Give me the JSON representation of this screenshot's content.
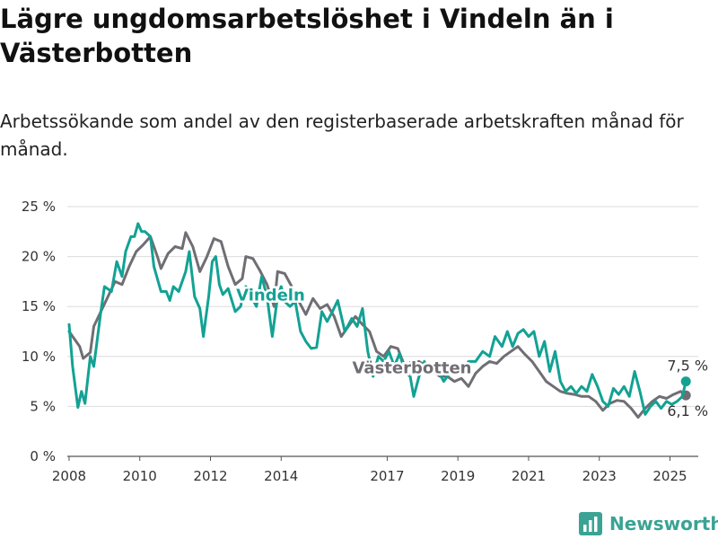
{
  "title": "Lägre ungdomsarbetslöshet i Vindeln än i Västerbotten",
  "subtitle": "Arbetssökande som andel av den registerbaserade arbetskraften månad för månad.",
  "brand": {
    "name": "Newsworthy",
    "icon": "bar-chart-logo-icon"
  },
  "colors": {
    "vindeln": "#12a294",
    "vasterbotten": "#706e74",
    "grid": "#dcdcdc"
  },
  "chart_data": {
    "type": "line",
    "title": "Lägre ungdomsarbetslöshet i Vindeln än i Västerbotten",
    "subtitle": "Arbetssökande som andel av den registerbaserade arbetskraften månad för månad.",
    "xlabel": "",
    "ylabel": "",
    "xlim": [
      2007.95,
      2025.8
    ],
    "ylim": [
      0,
      25
    ],
    "x_ticks": [
      2008,
      2010,
      2012,
      2014,
      2017,
      2019,
      2021,
      2023,
      2025
    ],
    "y_ticks": [
      {
        "value": 0,
        "label": "0 %"
      },
      {
        "value": 5,
        "label": "5 %"
      },
      {
        "value": 10,
        "label": "10 %"
      },
      {
        "value": 15,
        "label": "15 %"
      },
      {
        "value": 20,
        "label": "20 %"
      },
      {
        "value": 25,
        "label": "25 %"
      }
    ],
    "grid": true,
    "series": [
      {
        "name": "Västerbotten",
        "color": "#706e74",
        "points": [
          [
            2008.0,
            12.5
          ],
          [
            2008.3,
            11.0
          ],
          [
            2008.4,
            9.8
          ],
          [
            2008.6,
            10.4
          ],
          [
            2008.7,
            13.0
          ],
          [
            2008.9,
            14.5
          ],
          [
            2009.1,
            16.0
          ],
          [
            2009.3,
            17.5
          ],
          [
            2009.5,
            17.2
          ],
          [
            2009.7,
            19.0
          ],
          [
            2009.9,
            20.5
          ],
          [
            2010.1,
            21.2
          ],
          [
            2010.3,
            22.0
          ],
          [
            2010.5,
            20.0
          ],
          [
            2010.6,
            18.8
          ],
          [
            2010.8,
            20.3
          ],
          [
            2011.0,
            21.0
          ],
          [
            2011.2,
            20.8
          ],
          [
            2011.3,
            22.4
          ],
          [
            2011.5,
            21.0
          ],
          [
            2011.7,
            18.5
          ],
          [
            2011.9,
            20.0
          ],
          [
            2012.1,
            21.8
          ],
          [
            2012.3,
            21.5
          ],
          [
            2012.5,
            19.0
          ],
          [
            2012.7,
            17.2
          ],
          [
            2012.9,
            17.8
          ],
          [
            2013.0,
            20.0
          ],
          [
            2013.2,
            19.8
          ],
          [
            2013.4,
            18.6
          ],
          [
            2013.6,
            17.2
          ],
          [
            2013.8,
            15.0
          ],
          [
            2013.9,
            18.5
          ],
          [
            2014.1,
            18.3
          ],
          [
            2014.3,
            17.0
          ],
          [
            2014.5,
            15.5
          ],
          [
            2014.7,
            14.2
          ],
          [
            2014.9,
            15.8
          ],
          [
            2015.1,
            14.8
          ],
          [
            2015.3,
            15.2
          ],
          [
            2015.5,
            14.0
          ],
          [
            2015.7,
            12.0
          ],
          [
            2015.9,
            13.0
          ],
          [
            2016.1,
            14.0
          ],
          [
            2016.3,
            13.2
          ],
          [
            2016.5,
            12.5
          ],
          [
            2016.7,
            10.5
          ],
          [
            2016.9,
            10.0
          ],
          [
            2017.1,
            11.0
          ],
          [
            2017.3,
            10.8
          ],
          [
            2017.5,
            9.0
          ],
          [
            2017.7,
            9.5
          ],
          [
            2017.9,
            9.5
          ],
          [
            2018.1,
            9.0
          ],
          [
            2018.3,
            8.5
          ],
          [
            2018.5,
            8.0
          ],
          [
            2018.7,
            8.0
          ],
          [
            2018.9,
            7.5
          ],
          [
            2019.1,
            7.8
          ],
          [
            2019.3,
            7.0
          ],
          [
            2019.5,
            8.3
          ],
          [
            2019.7,
            9.0
          ],
          [
            2019.9,
            9.5
          ],
          [
            2020.1,
            9.3
          ],
          [
            2020.3,
            10.0
          ],
          [
            2020.5,
            10.5
          ],
          [
            2020.7,
            11.0
          ],
          [
            2020.9,
            10.2
          ],
          [
            2021.1,
            9.5
          ],
          [
            2021.3,
            8.5
          ],
          [
            2021.5,
            7.5
          ],
          [
            2021.7,
            7.0
          ],
          [
            2021.9,
            6.5
          ],
          [
            2022.1,
            6.3
          ],
          [
            2022.3,
            6.2
          ],
          [
            2022.5,
            6.0
          ],
          [
            2022.7,
            6.0
          ],
          [
            2022.9,
            5.5
          ],
          [
            2023.1,
            4.6
          ],
          [
            2023.3,
            5.3
          ],
          [
            2023.5,
            5.6
          ],
          [
            2023.7,
            5.5
          ],
          [
            2023.9,
            4.8
          ],
          [
            2024.1,
            3.9
          ],
          [
            2024.3,
            4.8
          ],
          [
            2024.5,
            5.5
          ],
          [
            2024.7,
            6.0
          ],
          [
            2024.9,
            5.8
          ],
          [
            2025.1,
            6.2
          ],
          [
            2025.3,
            6.5
          ],
          [
            2025.45,
            6.1
          ]
        ],
        "last_value": 6.1,
        "last_label": "6,1 %"
      },
      {
        "name": "Vindeln",
        "color": "#12a294",
        "points": [
          [
            2008.0,
            13.2
          ],
          [
            2008.1,
            9.0
          ],
          [
            2008.25,
            4.9
          ],
          [
            2008.35,
            6.5
          ],
          [
            2008.45,
            5.3
          ],
          [
            2008.6,
            10.0
          ],
          [
            2008.7,
            9.0
          ],
          [
            2008.9,
            14.5
          ],
          [
            2009.0,
            17.0
          ],
          [
            2009.2,
            16.5
          ],
          [
            2009.35,
            19.5
          ],
          [
            2009.5,
            18.0
          ],
          [
            2009.6,
            20.5
          ],
          [
            2009.75,
            22.0
          ],
          [
            2009.85,
            22.0
          ],
          [
            2009.95,
            23.3
          ],
          [
            2010.05,
            22.5
          ],
          [
            2010.15,
            22.5
          ],
          [
            2010.3,
            22.0
          ],
          [
            2010.4,
            19.0
          ],
          [
            2010.6,
            16.5
          ],
          [
            2010.75,
            16.5
          ],
          [
            2010.85,
            15.6
          ],
          [
            2010.95,
            17.0
          ],
          [
            2011.1,
            16.5
          ],
          [
            2011.3,
            18.5
          ],
          [
            2011.4,
            20.5
          ],
          [
            2011.55,
            16.0
          ],
          [
            2011.7,
            14.8
          ],
          [
            2011.8,
            12.0
          ],
          [
            2011.95,
            16.0
          ],
          [
            2012.05,
            19.5
          ],
          [
            2012.15,
            20.0
          ],
          [
            2012.25,
            17.2
          ],
          [
            2012.35,
            16.2
          ],
          [
            2012.5,
            16.8
          ],
          [
            2012.7,
            14.5
          ],
          [
            2012.85,
            15.0
          ],
          [
            2013.0,
            17.0
          ],
          [
            2013.15,
            16.0
          ],
          [
            2013.3,
            15.0
          ],
          [
            2013.45,
            18.0
          ],
          [
            2013.6,
            16.0
          ],
          [
            2013.75,
            12.0
          ],
          [
            2013.9,
            16.0
          ],
          [
            2014.0,
            17.0
          ],
          [
            2014.1,
            15.5
          ],
          [
            2014.25,
            15.0
          ],
          [
            2014.4,
            15.5
          ],
          [
            2014.55,
            12.5
          ],
          [
            2014.7,
            11.5
          ],
          [
            2014.85,
            10.8
          ],
          [
            2015.0,
            10.9
          ],
          [
            2015.15,
            14.5
          ],
          [
            2015.3,
            13.5
          ],
          [
            2015.45,
            14.5
          ],
          [
            2015.6,
            15.6
          ],
          [
            2015.8,
            12.5
          ],
          [
            2016.0,
            13.8
          ],
          [
            2016.15,
            13.0
          ],
          [
            2016.3,
            14.8
          ],
          [
            2016.45,
            10.5
          ],
          [
            2016.6,
            8.0
          ],
          [
            2016.75,
            10.0
          ],
          [
            2016.9,
            9.5
          ],
          [
            2017.05,
            10.5
          ],
          [
            2017.2,
            9.0
          ],
          [
            2017.35,
            10.3
          ],
          [
            2017.5,
            8.5
          ],
          [
            2017.65,
            8.0
          ],
          [
            2017.75,
            6.0
          ],
          [
            2017.9,
            8.0
          ],
          [
            2018.05,
            9.5
          ],
          [
            2018.2,
            8.5
          ],
          [
            2018.4,
            8.8
          ],
          [
            2018.6,
            7.5
          ],
          [
            2018.8,
            8.5
          ],
          [
            2019.0,
            9.0
          ],
          [
            2019.15,
            8.5
          ],
          [
            2019.3,
            9.5
          ],
          [
            2019.5,
            9.5
          ],
          [
            2019.7,
            10.5
          ],
          [
            2019.9,
            10.0
          ],
          [
            2020.05,
            12.0
          ],
          [
            2020.25,
            11.0
          ],
          [
            2020.4,
            12.5
          ],
          [
            2020.55,
            11.0
          ],
          [
            2020.7,
            12.3
          ],
          [
            2020.85,
            12.7
          ],
          [
            2021.0,
            12.0
          ],
          [
            2021.15,
            12.5
          ],
          [
            2021.3,
            10.0
          ],
          [
            2021.45,
            11.5
          ],
          [
            2021.6,
            8.5
          ],
          [
            2021.75,
            10.5
          ],
          [
            2021.9,
            7.5
          ],
          [
            2022.05,
            6.5
          ],
          [
            2022.2,
            7.0
          ],
          [
            2022.35,
            6.3
          ],
          [
            2022.5,
            7.0
          ],
          [
            2022.65,
            6.5
          ],
          [
            2022.8,
            8.2
          ],
          [
            2022.95,
            7.0
          ],
          [
            2023.1,
            5.5
          ],
          [
            2023.25,
            5.0
          ],
          [
            2023.4,
            6.8
          ],
          [
            2023.55,
            6.2
          ],
          [
            2023.7,
            7.0
          ],
          [
            2023.85,
            6.0
          ],
          [
            2024.0,
            8.5
          ],
          [
            2024.15,
            6.5
          ],
          [
            2024.3,
            4.2
          ],
          [
            2024.45,
            5.0
          ],
          [
            2024.6,
            5.5
          ],
          [
            2024.75,
            4.8
          ],
          [
            2024.9,
            5.5
          ],
          [
            2025.05,
            5.2
          ],
          [
            2025.2,
            5.5
          ],
          [
            2025.35,
            6.0
          ],
          [
            2025.45,
            7.5
          ]
        ],
        "last_value": 7.5,
        "last_label": "7,5 %"
      }
    ],
    "annotations": [
      {
        "text": "Vindeln",
        "series": "Vindeln",
        "x": 2013.7,
        "y": 15.6
      },
      {
        "text": "Västerbotten",
        "series": "Västerbotten",
        "x": 2017.7,
        "y": 8.3
      }
    ]
  }
}
